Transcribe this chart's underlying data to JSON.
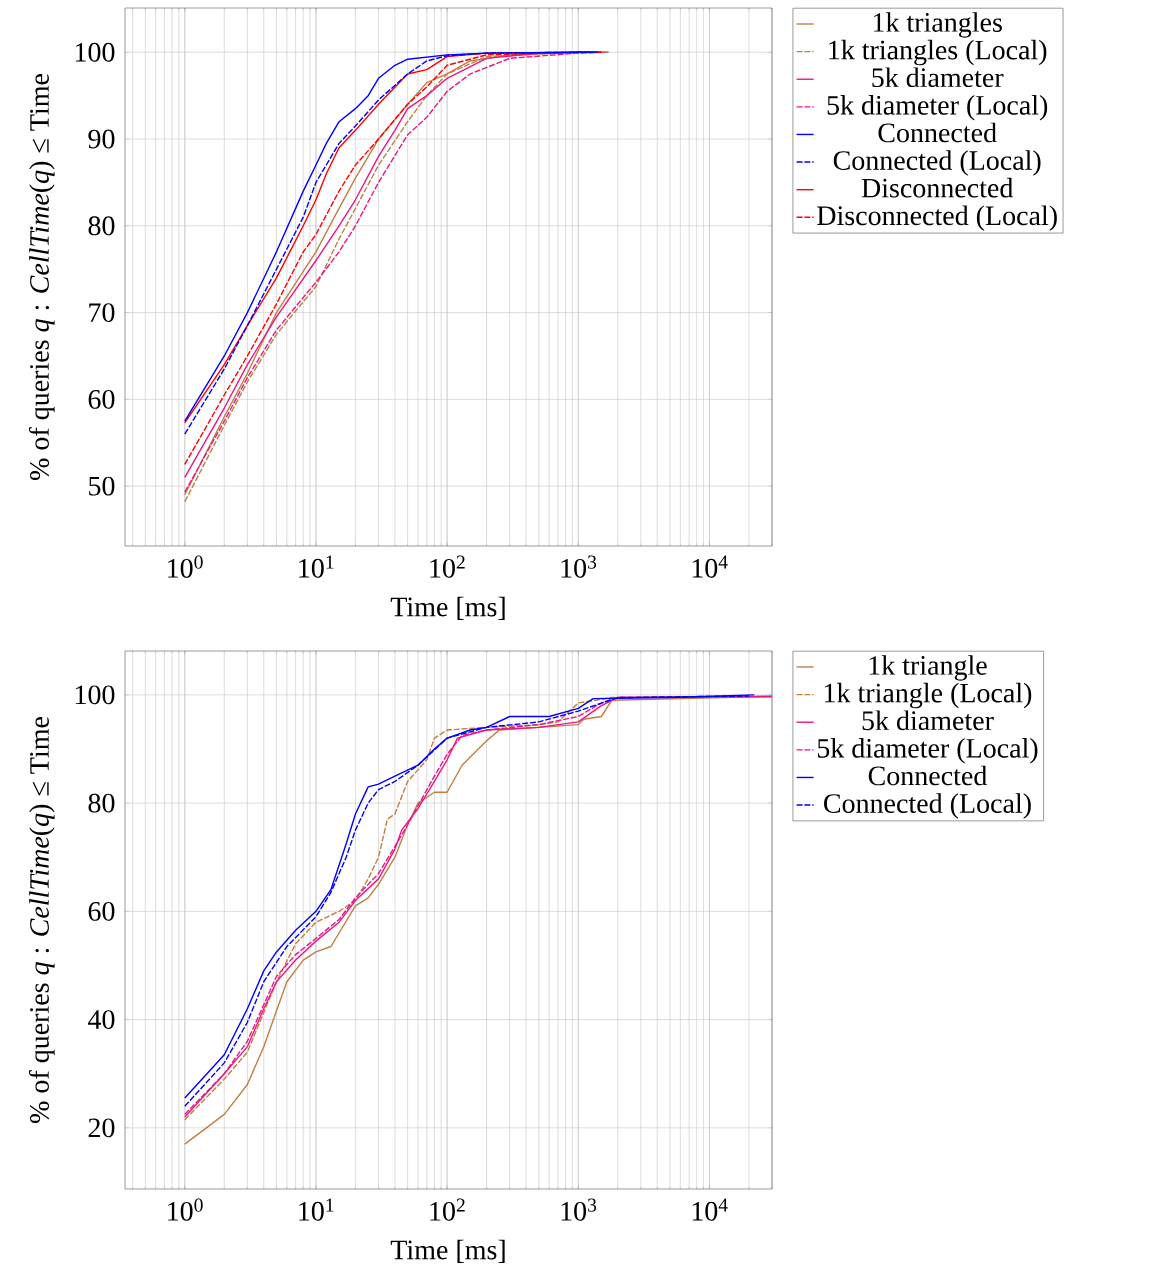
{
  "chart_data": [
    {
      "type": "line",
      "xlabel": "Time [ms]",
      "ylabel": "% of queries *q* : *CellTime*(*q*) ≤ Time",
      "log": "x",
      "grid": true,
      "legend": "top right",
      "xlim": [
        0.35,
        30000
      ],
      "ylim": [
        43.1,
        105.1
      ],
      "xticks": [
        {
          "value": 1,
          "label": "10$^{0}$"
        },
        {
          "value": 10,
          "label": "10$^{1}$"
        },
        {
          "value": 100,
          "label": "10$^{2}$"
        },
        {
          "value": 1000,
          "label": "10$^{3}$"
        },
        {
          "value": 10000,
          "label": "10$^{4}$"
        }
      ],
      "yticks": [
        50,
        60,
        70,
        80,
        90,
        100
      ],
      "series": [
        {
          "name": "1k triangles",
          "color": "#bf8040",
          "line_style": "solid",
          "x": [
            1,
            2,
            3,
            5,
            10,
            15,
            20,
            30,
            50,
            70,
            100,
            150,
            300,
            1000,
            1700
          ],
          "values": [
            49,
            58,
            63,
            70,
            77,
            82,
            85.5,
            90,
            94,
            96.5,
            97.5,
            99,
            99.7,
            100,
            100
          ]
        },
        {
          "name": "1k triangles (Local)",
          "color": "#bf8040",
          "line_style": "dashed",
          "x": [
            1,
            2,
            3,
            5,
            10,
            15,
            20,
            30,
            50,
            70,
            100,
            200,
            1000,
            1700
          ],
          "values": [
            48.2,
            57,
            62,
            67.5,
            73,
            78.5,
            82,
            87,
            92,
            95,
            97.5,
            99.5,
            100,
            100
          ]
        },
        {
          "name": "5k diameter",
          "color": "#e8178a",
          "line_style": "solid",
          "x": [
            1,
            2,
            3,
            5,
            10,
            15,
            20,
            30,
            40,
            50,
            70,
            100,
            200,
            500,
            1500
          ],
          "values": [
            51,
            59,
            64,
            69.5,
            76,
            80,
            83,
            88,
            91,
            93.5,
            95,
            97,
            99.3,
            99.9,
            100
          ]
        },
        {
          "name": "5k diameter (Local)",
          "color": "#e8178a",
          "line_style": "dashed",
          "x": [
            1,
            2,
            3,
            5,
            10,
            15,
            20,
            30,
            50,
            70,
            100,
            150,
            300,
            1000,
            1600
          ],
          "values": [
            49.3,
            57.5,
            62.5,
            68,
            73.5,
            77,
            80,
            85,
            90.5,
            92.5,
            95.5,
            97.5,
            99.3,
            99.9,
            100
          ]
        },
        {
          "name": "Connected",
          "color": "#0000ff",
          "line_style": "solid",
          "x": [
            1,
            2,
            3,
            5,
            8,
            10,
            12,
            15,
            20,
            25,
            30,
            40,
            50,
            100,
            200,
            1000,
            1300
          ],
          "values": [
            57.5,
            65,
            70,
            77,
            84,
            87,
            89.5,
            92,
            93.5,
            95,
            97,
            98.5,
            99.2,
            99.7,
            99.9,
            100,
            100
          ]
        },
        {
          "name": "Connected (Local)",
          "color": "#0000ff",
          "line_style": "dashed",
          "x": [
            1,
            2,
            3,
            5,
            8,
            10,
            15,
            20,
            30,
            50,
            70,
            100,
            200,
            1000,
            1400
          ],
          "values": [
            56,
            63.5,
            68.5,
            75,
            81,
            85,
            89.5,
            91.5,
            94.5,
            97.5,
            99,
            99.6,
            99.9,
            100,
            100
          ]
        },
        {
          "name": "Disconnected",
          "color": "#ff0000",
          "line_style": "solid",
          "x": [
            1,
            2,
            3,
            5,
            8,
            10,
            12,
            15,
            20,
            30,
            50,
            70,
            100,
            200,
            1000,
            1500
          ],
          "values": [
            57.3,
            64,
            68.5,
            74,
            80,
            83,
            86,
            89,
            91,
            94,
            97.5,
            98,
            99.5,
            99.9,
            100,
            100
          ]
        },
        {
          "name": "Disconnected (Local)",
          "color": "#ff0000",
          "line_style": "dashed",
          "x": [
            1,
            2,
            3,
            5,
            8,
            10,
            15,
            20,
            30,
            50,
            70,
            100,
            200,
            1000,
            1500
          ],
          "values": [
            52.5,
            60.5,
            65,
            71,
            77,
            79,
            84,
            87,
            90,
            94,
            96,
            98.5,
            99.7,
            100,
            100
          ]
        }
      ]
    },
    {
      "type": "line",
      "xlabel": "Time [ms]",
      "ylabel": "% of queries *q* : *CellTime*(*q*) ≤ Time",
      "log": "x",
      "grid": true,
      "legend": "top right",
      "xlim": [
        0.35,
        30000
      ],
      "ylim": [
        8.7,
        108.1
      ],
      "xticks": [
        {
          "value": 1,
          "label": "10$^{0}$"
        },
        {
          "value": 10,
          "label": "10$^{1}$"
        },
        {
          "value": 100,
          "label": "10$^{2}$"
        },
        {
          "value": 1000,
          "label": "10$^{3}$"
        },
        {
          "value": 10000,
          "label": "10$^{4}$"
        }
      ],
      "yticks": [
        20,
        40,
        60,
        80,
        100
      ],
      "series": [
        {
          "name": "1k triangle",
          "color": "#bf8040",
          "line_style": "solid",
          "x": [
            1,
            2,
            3,
            4,
            6,
            8,
            10,
            13,
            15,
            20,
            25,
            30,
            40,
            50,
            60,
            80,
            100,
            130,
            200,
            250,
            1000,
            1100,
            1500,
            1800,
            30000
          ],
          "values": [
            17,
            22.5,
            28,
            35,
            47,
            51,
            52.5,
            53.5,
            56,
            61,
            62.5,
            65,
            70,
            76,
            80,
            82,
            82,
            87,
            91.5,
            93.5,
            94.5,
            95.5,
            96,
            99,
            99.7
          ]
        },
        {
          "name": "1k triangle (Local)",
          "color": "#bf8040",
          "line_style": "dashed",
          "x": [
            1,
            2,
            3,
            5,
            7,
            10,
            15,
            20,
            25,
            30,
            35,
            40,
            50,
            70,
            80,
            100,
            200,
            500,
            700,
            1000,
            1800,
            30000
          ],
          "values": [
            21.5,
            29,
            34,
            47,
            54,
            58,
            60,
            62,
            66,
            70,
            77,
            78,
            84,
            88,
            92,
            93.5,
            94,
            94.5,
            95,
            98.5,
            99.5,
            99.7
          ]
        },
        {
          "name": "5k diameter",
          "color": "#e8178a",
          "line_style": "solid",
          "x": [
            1,
            2,
            3,
            4,
            5,
            7,
            10,
            15,
            20,
            30,
            40,
            45,
            60,
            80,
            100,
            120,
            200,
            500,
            1000,
            1500,
            2000,
            30000
          ],
          "values": [
            22,
            30,
            35,
            42,
            47,
            51,
            54.5,
            58,
            62,
            66,
            71.5,
            75,
            79,
            84,
            88,
            92,
            93.5,
            94,
            95,
            98,
            99.5,
            99.7
          ]
        },
        {
          "name": "5k diameter (Local)",
          "color": "#e8178a",
          "line_style": "dashed",
          "x": [
            1,
            2,
            3,
            5,
            7,
            10,
            15,
            20,
            30,
            40,
            50,
            80,
            100,
            130,
            200,
            500,
            1000,
            1500,
            2000,
            30000
          ],
          "values": [
            22.5,
            30,
            36,
            48,
            52,
            55,
            58.5,
            62.5,
            67,
            72,
            76,
            85,
            89,
            92.5,
            93.5,
            94.5,
            96,
            98.5,
            99.5,
            99.7
          ]
        },
        {
          "name": "Connected",
          "color": "#0000ff",
          "line_style": "solid",
          "x": [
            1,
            2,
            3,
            4,
            5,
            7,
            10,
            13,
            15,
            17,
            20,
            25,
            30,
            40,
            60,
            80,
            100,
            150,
            200,
            300,
            600,
            1000,
            1300,
            5000,
            22000
          ],
          "values": [
            25.5,
            33.5,
            42,
            49,
            52.5,
            56.5,
            60,
            64,
            68.5,
            72.5,
            78,
            83,
            83.5,
            85,
            87,
            90,
            92,
            93.5,
            94,
            96,
            96,
            97.5,
            99.3,
            99.5,
            100
          ]
        },
        {
          "name": "Connected (Local)",
          "color": "#0000ff",
          "line_style": "dashed",
          "x": [
            1,
            2,
            3,
            4,
            6,
            10,
            13,
            17,
            20,
            25,
            30,
            40,
            60,
            100,
            200,
            500,
            1000,
            2000,
            20000
          ],
          "values": [
            24,
            32,
            39.5,
            47,
            53.5,
            59,
            63.5,
            70,
            75,
            80,
            82.5,
            84,
            87,
            92,
            94,
            95,
            97,
            99.5,
            99.8
          ]
        }
      ]
    }
  ]
}
